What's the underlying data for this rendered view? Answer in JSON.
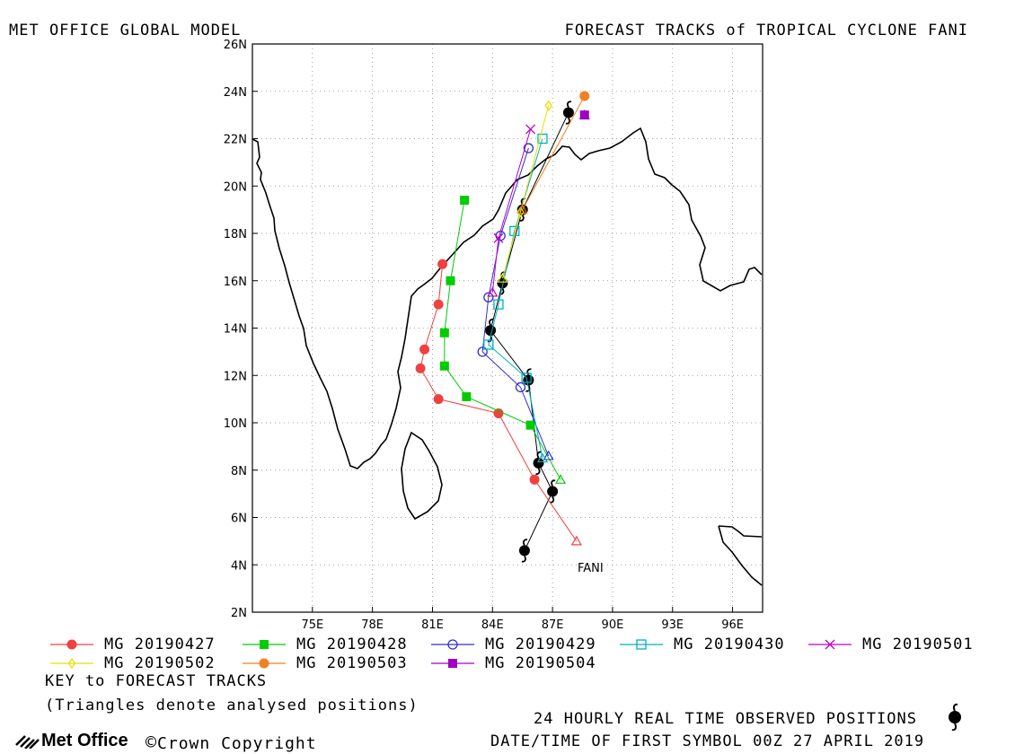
{
  "header": {
    "left_title": "MET OFFICE GLOBAL MODEL",
    "right_title": "FORECAST TRACKS of TROPICAL CYCLONE FANI"
  },
  "map": {
    "lon_ticks": [
      "75E",
      "78E",
      "81E",
      "84E",
      "87E",
      "90E",
      "93E",
      "96E"
    ],
    "lat_ticks": [
      "26N",
      "24N",
      "22N",
      "20N",
      "18N",
      "16N",
      "14N",
      "12N",
      "10N",
      "8N",
      "6N",
      "4N",
      "2N"
    ],
    "storm_label": "FANI",
    "observed_positions": [
      [
        85.6,
        4.6
      ],
      [
        87.0,
        7.1
      ],
      [
        86.3,
        8.3
      ],
      [
        85.8,
        11.8
      ],
      [
        83.9,
        13.9
      ],
      [
        84.5,
        15.9
      ],
      [
        85.5,
        19.0
      ],
      [
        87.8,
        23.1
      ]
    ]
  },
  "chart_data": {
    "type": "map-tracks",
    "xlabel": "",
    "ylabel": "",
    "xlim": [
      72.0,
      97.5
    ],
    "ylim": [
      2,
      26
    ],
    "series": [
      {
        "name": "MG 20190427",
        "color": "#f04040",
        "marker": "filled-circle",
        "points": [
          [
            88.2,
            5.0
          ],
          [
            86.1,
            7.6
          ],
          [
            84.3,
            10.4
          ],
          [
            81.3,
            11.0
          ],
          [
            80.4,
            12.3
          ],
          [
            80.6,
            13.1
          ],
          [
            81.3,
            15.0
          ],
          [
            81.5,
            16.7
          ]
        ]
      },
      {
        "name": "MG 20190428",
        "color": "#00cc00",
        "marker": "filled-square",
        "points": [
          [
            87.4,
            7.6
          ],
          [
            85.9,
            9.9
          ],
          [
            82.7,
            11.1
          ],
          [
            81.6,
            12.4
          ],
          [
            81.6,
            13.8
          ],
          [
            81.9,
            16.0
          ],
          [
            82.6,
            19.4
          ]
        ]
      },
      {
        "name": "MG 20190429",
        "color": "#3030d0",
        "marker": "open-circle",
        "points": [
          [
            86.8,
            8.6
          ],
          [
            85.4,
            11.5
          ],
          [
            83.5,
            13.0
          ],
          [
            83.8,
            15.3
          ],
          [
            84.4,
            17.9
          ],
          [
            85.8,
            21.6
          ]
        ]
      },
      {
        "name": "MG 20190430",
        "color": "#00b0c0",
        "marker": "open-square",
        "points": [
          [
            86.5,
            8.5
          ],
          [
            85.7,
            11.9
          ],
          [
            83.8,
            13.3
          ],
          [
            84.3,
            15.0
          ],
          [
            85.1,
            18.1
          ],
          [
            86.5,
            22.0
          ]
        ]
      },
      {
        "name": "MG 20190501",
        "color": "#c000c0",
        "marker": "cross",
        "points": [
          [
            84.0,
            15.5
          ],
          [
            84.3,
            17.8
          ],
          [
            85.9,
            22.4
          ]
        ]
      },
      {
        "name": "MG 20190502",
        "color": "#e8e000",
        "marker": "open-diamond",
        "points": [
          [
            84.5,
            16.1
          ],
          [
            85.4,
            18.9
          ],
          [
            86.8,
            23.4
          ]
        ]
      },
      {
        "name": "MG 20190503",
        "color": "#f08020",
        "marker": "filled-circle",
        "points": [
          [
            85.5,
            19.0
          ],
          [
            88.6,
            23.8
          ]
        ]
      },
      {
        "name": "MG 20190504",
        "color": "#a000c0",
        "marker": "filled-square",
        "points": [
          [
            88.6,
            23.0
          ]
        ]
      }
    ]
  },
  "legend": {
    "key_title": "KEY to FORECAST TRACKS",
    "key_note": "(Triangles denote analysed positions)"
  },
  "footer": {
    "observed_label": "24 HOURLY REAL TIME OBSERVED POSITIONS",
    "datetime_label": "DATE/TIME OF FIRST SYMBOL 00Z 27 APRIL 2019",
    "brand": "Met Office",
    "copyright": "Crown Copyright"
  }
}
